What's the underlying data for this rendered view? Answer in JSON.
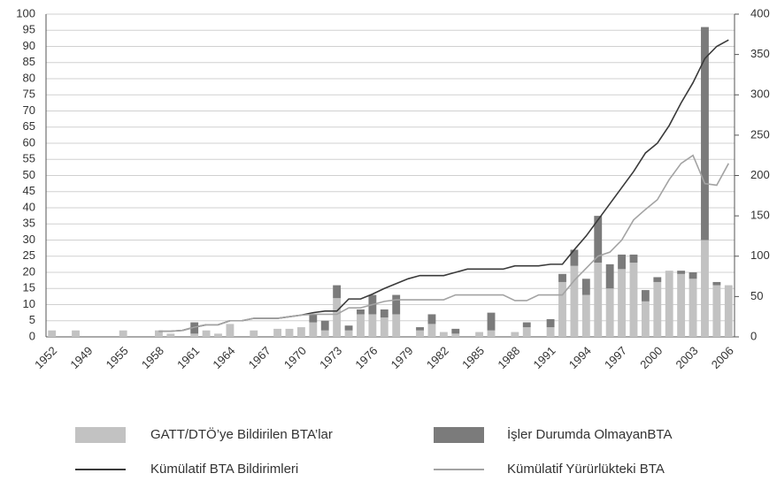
{
  "chart_data": {
    "type": "bar",
    "categories": [
      "1952",
      null,
      null,
      "1949",
      null,
      null,
      "1955",
      null,
      null,
      "1958",
      null,
      null,
      "1961",
      null,
      null,
      "1964",
      null,
      null,
      "1967",
      null,
      null,
      "1970",
      null,
      null,
      "1973",
      null,
      null,
      "1976",
      null,
      null,
      "1979",
      null,
      null,
      "1982",
      null,
      null,
      "1985",
      null,
      null,
      "1988",
      null,
      null,
      "1991",
      null,
      null,
      "1994",
      null,
      null,
      "1997",
      null,
      null,
      "2000",
      null,
      null,
      "2003",
      null,
      null,
      "2006"
    ],
    "series": [
      {
        "name": "GATT/DTÖ’ye Bildirilen BTA’lar",
        "type": "bar",
        "color": "#c2c2c2",
        "values": [
          2,
          0,
          2,
          0,
          0,
          0,
          2,
          0,
          0,
          2,
          1,
          0,
          1,
          2,
          1,
          4,
          0,
          2,
          0,
          2.5,
          2.5,
          3,
          4.5,
          2,
          12,
          2,
          7,
          7,
          6,
          7,
          0,
          2,
          4,
          1.5,
          1,
          0,
          1.5,
          2,
          0,
          1.5,
          3,
          0,
          3,
          17,
          22,
          13,
          23,
          15,
          21,
          23,
          11,
          17,
          20.5,
          19.5,
          18,
          30,
          16,
          16
        ]
      },
      {
        "name": "İşler Durumda OlmayanBTA",
        "type": "bar",
        "color": "#7b7b7b",
        "values": [
          0,
          0,
          0,
          0,
          0,
          0,
          0,
          0,
          0,
          0,
          0,
          0,
          3.5,
          0,
          0,
          0,
          0,
          0,
          0,
          0,
          0,
          0,
          2.5,
          3,
          4,
          1.5,
          1.5,
          6,
          2.5,
          6,
          0,
          1,
          3,
          0,
          1.5,
          0,
          0,
          5.5,
          0,
          0,
          1.5,
          0,
          2.5,
          2.5,
          5,
          5,
          14.5,
          7.5,
          4.5,
          2.5,
          3.5,
          1.5,
          0,
          1,
          2,
          66,
          1,
          0
        ]
      },
      {
        "name": "Kümülatif BTA Bildirimleri",
        "type": "line",
        "axis": "y2",
        "color": "#3a3a3a",
        "values": [
          null,
          null,
          null,
          null,
          null,
          null,
          null,
          null,
          null,
          7,
          7,
          8,
          12,
          15,
          15,
          20,
          20,
          23,
          23,
          23,
          25,
          27,
          30,
          32,
          32,
          47,
          47,
          53,
          60,
          66,
          72,
          76,
          76,
          76,
          80,
          84,
          84,
          84,
          84,
          88,
          88,
          88,
          90,
          90,
          108,
          125,
          145,
          165,
          185,
          205,
          228,
          240,
          262,
          290,
          315,
          345,
          360,
          368
        ]
      },
      {
        "name": "Kümülatif Yürürlükteki BTA",
        "type": "line",
        "axis": "y2",
        "color": "#a3a3a3",
        "values": [
          null,
          null,
          null,
          null,
          null,
          null,
          null,
          null,
          null,
          7,
          7,
          8,
          12,
          15,
          15,
          20,
          20,
          23,
          23,
          23,
          25,
          27,
          28,
          28,
          28,
          36,
          36,
          40,
          44,
          46,
          46,
          46,
          46,
          46,
          52,
          52,
          52,
          52,
          52,
          45,
          45,
          52,
          52,
          52,
          70,
          85,
          100,
          105,
          120,
          145,
          158,
          170,
          195,
          215,
          225,
          190,
          188,
          215
        ]
      }
    ],
    "ylim": [
      0,
      100
    ],
    "yticks": [
      0,
      5,
      10,
      15,
      20,
      25,
      30,
      35,
      40,
      45,
      50,
      55,
      60,
      65,
      70,
      75,
      80,
      85,
      90,
      95,
      100
    ],
    "y2lim": [
      0,
      400
    ],
    "y2ticks": [
      0,
      50,
      100,
      150,
      200,
      250,
      300,
      350,
      400
    ],
    "grid": true,
    "stacked": true,
    "legend": "bottom"
  }
}
